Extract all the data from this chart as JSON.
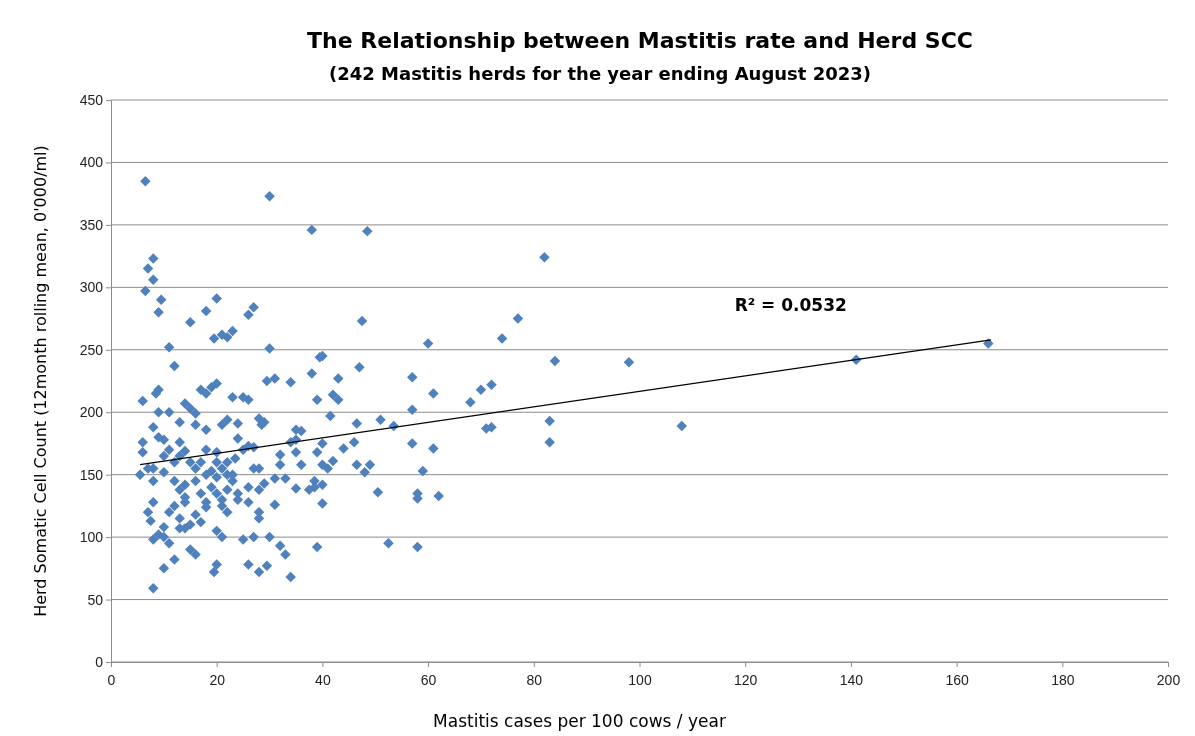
{
  "chart_data": {
    "type": "scatter",
    "title": "The Relationship between Mastitis rate and Herd SCC",
    "subtitle": "(242 Mastitis herds for the year ending August 2023)",
    "xlabel": "Mastitis cases per 100 cows / year",
    "ylabel": "Herd Somatic Cell Count (12month rolling mean, 0'000/ml)",
    "xlim": [
      0,
      200
    ],
    "xticks": [
      0,
      20,
      40,
      60,
      80,
      100,
      120,
      140,
      160,
      180,
      200
    ],
    "ylim": [
      0,
      450
    ],
    "yticks": [
      0,
      50,
      100,
      150,
      200,
      250,
      300,
      350,
      400,
      450
    ],
    "grid": "y",
    "annotations": [
      "R² = 0.0532"
    ],
    "series": [
      {
        "marker": "diamond",
        "color": "#4f81bd",
        "x": [
          6.5,
          30,
          38,
          48.5,
          82,
          166,
          141,
          108,
          98,
          84,
          83,
          83,
          77,
          74,
          72,
          70,
          68,
          71,
          72,
          62,
          61,
          61,
          60,
          59,
          58,
          58,
          58,
          57,
          57,
          57,
          53.5,
          52.5,
          51,
          50.5,
          49,
          48,
          47.5,
          47,
          46.5,
          46,
          46.5,
          44,
          43,
          43,
          42,
          42,
          41.5,
          41,
          40,
          39.5,
          40,
          40,
          40,
          40,
          39,
          39,
          38.5,
          38.5,
          38,
          39,
          37.5,
          36,
          36,
          35,
          35,
          35,
          35,
          34,
          34,
          33,
          33,
          32,
          34,
          31,
          32,
          32,
          31,
          31,
          30,
          29.5,
          29,
          29,
          29.5,
          28,
          28.5,
          28,
          27,
          28,
          28,
          28,
          28,
          27,
          26,
          26,
          26,
          26,
          26,
          27,
          25,
          24,
          24,
          23.5,
          24,
          25,
          23,
          22,
          21,
          23,
          22,
          21,
          22,
          22,
          22,
          21,
          21,
          20,
          19.5,
          20,
          19,
          20,
          20,
          20,
          20,
          20,
          20,
          19.5,
          18,
          18,
          17,
          18,
          18,
          17,
          17,
          18,
          17,
          16,
          16,
          16,
          15,
          15,
          14,
          14,
          14,
          14,
          14,
          13,
          13,
          13,
          13,
          12,
          12,
          12,
          11,
          11,
          11,
          11,
          11,
          10,
          10,
          10,
          10,
          10,
          9.5,
          9,
          9,
          8.5,
          9,
          9,
          8,
          8,
          8,
          8,
          8,
          8,
          8,
          8,
          7,
          6.5,
          6,
          6,
          6,
          5.5,
          7,
          7,
          7.5,
          12,
          13,
          15,
          16,
          15,
          16,
          18,
          19,
          21,
          22,
          24,
          23,
          26,
          30,
          21,
          23,
          25,
          27,
          18,
          16,
          12,
          13,
          15,
          10,
          9,
          14,
          19
        ],
        "values": [
          385,
          373,
          346,
          345,
          324,
          255,
          242,
          189,
          240,
          241,
          193,
          176,
          275,
          259,
          222,
          218,
          208,
          187,
          188,
          133,
          215,
          171,
          255,
          153,
          135,
          131,
          92,
          228,
          202,
          175,
          189,
          95,
          194,
          136,
          158,
          152,
          273,
          236,
          191,
          176,
          158,
          171,
          227,
          210,
          214,
          161,
          197,
          155,
          245,
          244,
          175,
          158,
          142,
          127,
          210,
          168,
          145,
          140,
          231,
          92,
          138,
          185,
          158,
          186,
          178,
          168,
          139,
          224,
          176,
          147,
          86,
          93,
          68,
          227,
          166,
          158,
          147,
          126,
          251,
          225,
          192,
          143,
          77,
          195,
          190,
          155,
          155,
          138,
          120,
          115,
          72,
          284,
          278,
          210,
          173,
          128,
          78,
          100,
          212,
          191,
          179,
          163,
          130,
          98,
          265,
          260,
          262,
          212,
          194,
          190,
          160,
          150,
          138,
          125,
          100,
          291,
          259,
          223,
          220,
          168,
          160,
          148,
          135,
          105,
          78,
          72,
          281,
          215,
          218,
          186,
          170,
          160,
          135,
          124,
          112,
          199,
          155,
          118,
          272,
          203,
          207,
          169,
          142,
          128,
          107,
          192,
          176,
          165,
          138,
          237,
          160,
          145,
          252,
          200,
          170,
          120,
          95,
          178,
          165,
          152,
          108,
          75,
          290,
          280,
          218,
          215,
          200,
          180,
          188,
          155,
          145,
          128,
          98,
          59,
          323,
          306,
          315,
          297,
          209,
          176,
          168,
          150,
          155,
          120,
          113,
          82,
          107,
          90,
          86,
          160,
          190,
          128,
          140,
          130,
          120,
          135,
          145,
          140,
          100,
          155,
          150,
          170,
          172,
          150,
          145,
          125,
          115,
          110,
          100,
          102,
          132,
          153
        ]
      },
      {
        "type": "line",
        "color": "#000000",
        "x": [
          5.5,
          166.5
        ],
        "values": [
          158,
          258
        ]
      }
    ]
  }
}
